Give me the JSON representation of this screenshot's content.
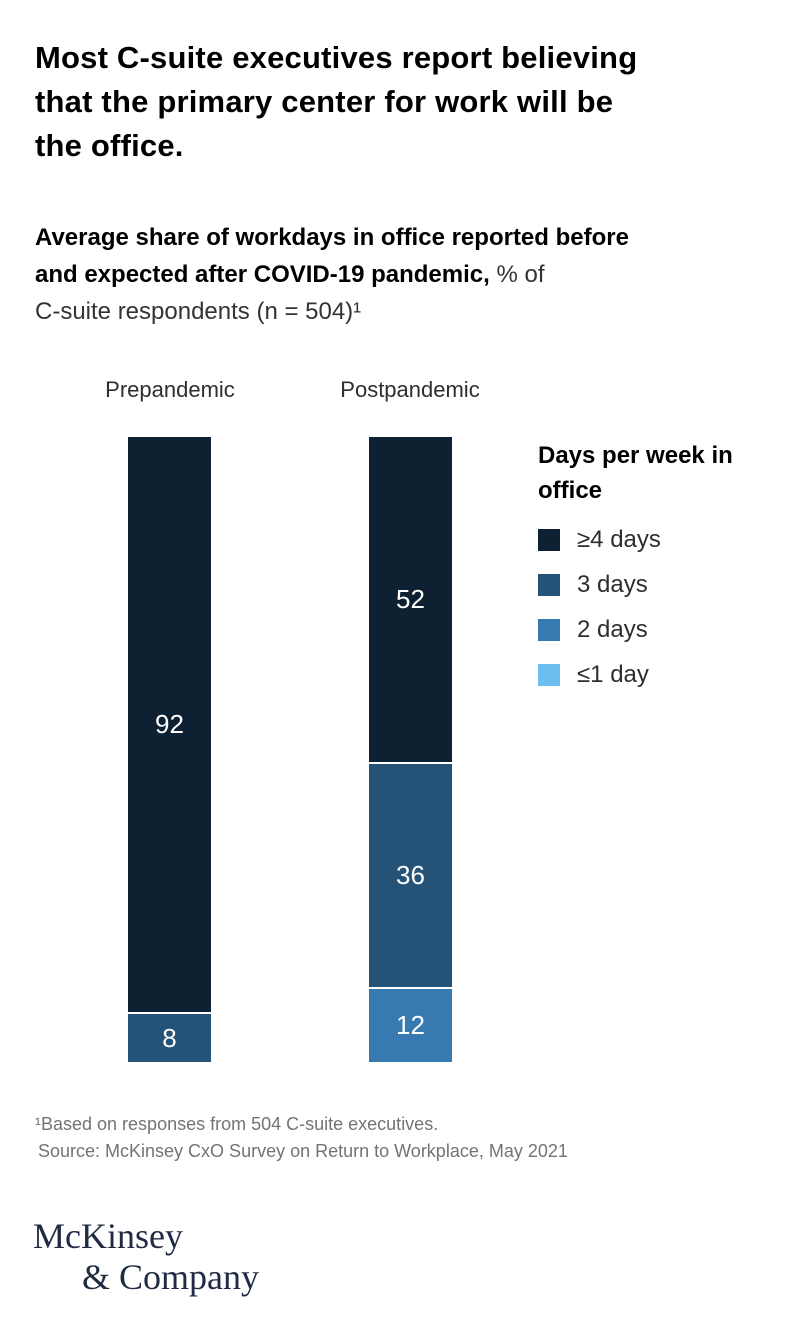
{
  "title": {
    "line1": "Most C-suite executives report believing",
    "line2": "that the primary center for work will be",
    "line3": "the office."
  },
  "subtitle": {
    "line1_bold": "Average share of workdays in office reported before",
    "line2_bold": "and expected after COVID-19 pandemic,",
    "line2_regular": " % of",
    "line3_regular": "C-suite respondents (n = 504)¹"
  },
  "chart_data": {
    "type": "bar",
    "subtype": "stacked_column",
    "categories": [
      "Prepandemic",
      "Postpandemic"
    ],
    "series": [
      {
        "name": "≥4 days",
        "color": "#0e2132",
        "values": [
          92,
          52
        ]
      },
      {
        "name": "3 days",
        "color": "#255378",
        "values": [
          8,
          36
        ]
      },
      {
        "name": "2 days",
        "color": "#3779b1",
        "values": [
          0,
          12
        ]
      },
      {
        "name": "≤1 day",
        "color": "#6cbdf0",
        "values": [
          0,
          0
        ]
      }
    ],
    "ylim": [
      0,
      100
    ],
    "unit": "%",
    "legend_title": "Days per week in office",
    "legend_position": "right",
    "data_labels": true,
    "grid": false
  },
  "footnote": {
    "line1": "¹Based on responses from 504 C-suite executives.",
    "line2": "Source: McKinsey CxO Survey on Return to Workplace, May 2021"
  },
  "logo": {
    "line1": "McKinsey",
    "line2": "& Company"
  },
  "colors": {
    "background": "#ffffff",
    "title_text": "#000000",
    "body_text": "#333333",
    "footnote_text": "#737373",
    "logo_navy": "#1f2b43",
    "bar_label_text": "#ffffff"
  }
}
